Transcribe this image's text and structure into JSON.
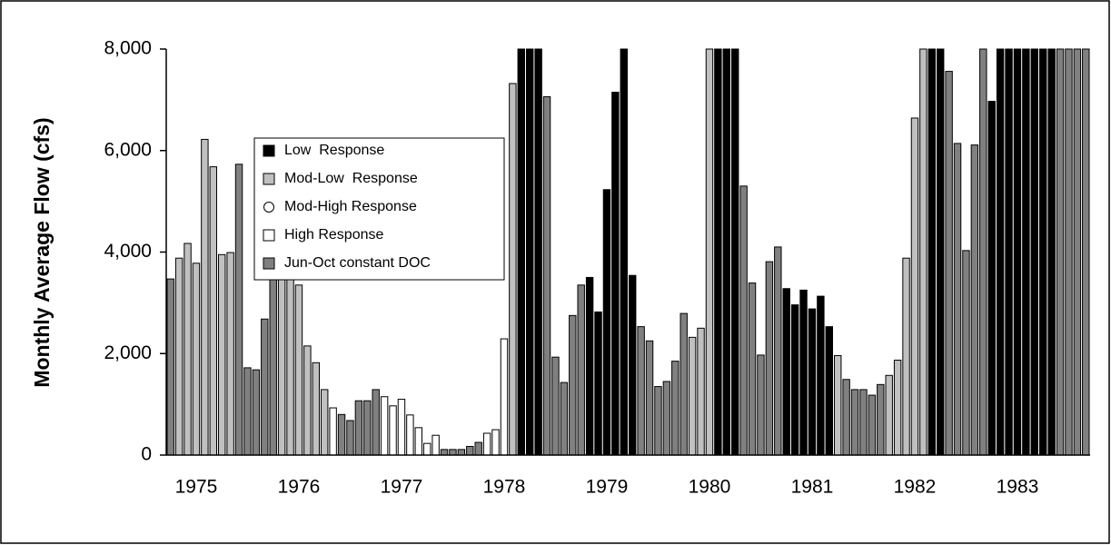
{
  "chart_data": {
    "type": "bar",
    "y_label": "Monthly Average Flow (cfs)",
    "categories": [
      null,
      null,
      null,
      "1975",
      null,
      null,
      null,
      null,
      null,
      null,
      null,
      null,
      null,
      null,
      null,
      "1976",
      null,
      null,
      null,
      null,
      null,
      null,
      null,
      null,
      null,
      null,
      null,
      "1977",
      null,
      null,
      null,
      null,
      null,
      null,
      null,
      null,
      null,
      null,
      null,
      "1978",
      null,
      null,
      null,
      null,
      null,
      null,
      null,
      null,
      null,
      null,
      null,
      "1979",
      null,
      null,
      null,
      null,
      null,
      null,
      null,
      null,
      null,
      null,
      null,
      "1980",
      null,
      null,
      null,
      null,
      null,
      null,
      null,
      null,
      null,
      null,
      null,
      "1981",
      null,
      null,
      null,
      null,
      null,
      null,
      null,
      null,
      null,
      null,
      null,
      "1982",
      null,
      null,
      null,
      null,
      null,
      null,
      null,
      null,
      null,
      null,
      null,
      "1983",
      null,
      null,
      null,
      null,
      null,
      null,
      null,
      null
    ],
    "ylim": [
      0,
      8000
    ],
    "yticks": [
      0,
      {
        "value": 2000,
        "label": "2,000"
      },
      {
        "value": 4000,
        "label": "4,000"
      },
      {
        "value": 6000,
        "label": "6,000"
      },
      {
        "value": 8000,
        "label": "8,000"
      }
    ],
    "series": [
      {
        "name": "Low  Response",
        "color": "#000000",
        "marker": "square",
        "values": [
          null,
          null,
          null,
          null,
          null,
          null,
          null,
          null,
          null,
          null,
          null,
          null,
          null,
          null,
          null,
          null,
          null,
          null,
          null,
          null,
          null,
          null,
          null,
          null,
          null,
          null,
          null,
          null,
          null,
          null,
          null,
          null,
          null,
          null,
          null,
          null,
          null,
          null,
          null,
          null,
          null,
          8000,
          8000,
          8000,
          null,
          null,
          null,
          null,
          null,
          3500,
          2820,
          5230,
          7150,
          8000,
          3540,
          null,
          null,
          null,
          null,
          null,
          null,
          null,
          null,
          null,
          8000,
          8000,
          8000,
          null,
          null,
          null,
          null,
          null,
          3280,
          2960,
          3250,
          2880,
          3130,
          2530,
          null,
          null,
          null,
          null,
          null,
          null,
          null,
          null,
          null,
          null,
          null,
          8000,
          8000,
          null,
          null,
          null,
          null,
          null,
          6970,
          8000,
          8000,
          8000,
          8000,
          8000,
          8000,
          8000,
          null,
          null,
          null,
          null
        ]
      },
      {
        "name": "Mod-Low  Response",
        "color": "#c0c0c0",
        "marker": "square",
        "values": [
          null,
          3880,
          4170,
          3780,
          6220,
          5680,
          3950,
          3990,
          null,
          null,
          null,
          null,
          null,
          3950,
          3700,
          3350,
          2150,
          1820,
          1290,
          null,
          null,
          null,
          null,
          null,
          null,
          null,
          null,
          null,
          null,
          null,
          null,
          null,
          null,
          null,
          null,
          null,
          null,
          null,
          null,
          null,
          7320,
          null,
          null,
          null,
          null,
          null,
          null,
          null,
          null,
          null,
          null,
          null,
          null,
          null,
          null,
          null,
          null,
          null,
          null,
          null,
          null,
          2320,
          2500,
          8000,
          null,
          null,
          null,
          null,
          null,
          null,
          null,
          null,
          null,
          null,
          null,
          null,
          null,
          null,
          1960,
          null,
          null,
          null,
          null,
          null,
          1570,
          1870,
          3880,
          6640,
          8000,
          null,
          null,
          null,
          null,
          null,
          null,
          null,
          null,
          null,
          null,
          null,
          null,
          null,
          null,
          null,
          null,
          null,
          null,
          null
        ]
      },
      {
        "name": "Mod-High Response",
        "color": "#ffffff",
        "marker": "circle",
        "values": [
          null,
          null,
          null,
          null,
          null,
          null,
          null,
          null,
          null,
          null,
          null,
          null,
          null,
          null,
          null,
          null,
          null,
          null,
          null,
          null,
          null,
          null,
          null,
          null,
          null,
          1150,
          970,
          1100,
          790,
          540,
          230,
          390,
          null,
          null,
          null,
          null,
          null,
          null,
          null,
          null,
          null,
          null,
          null,
          null,
          null,
          null,
          null,
          null,
          null,
          null,
          null,
          null,
          null,
          null,
          null,
          null,
          null,
          null,
          null,
          null,
          null,
          null,
          null,
          null,
          null,
          null,
          null,
          null,
          null,
          null,
          null,
          null,
          null,
          null,
          null,
          null,
          null,
          null,
          null,
          null,
          null,
          null,
          null,
          null,
          null,
          null,
          null,
          null,
          null,
          null,
          null,
          null,
          null,
          null,
          null,
          null,
          null,
          null,
          null,
          null,
          null,
          null,
          null,
          null,
          null,
          null,
          null,
          null
        ]
      },
      {
        "name": "High Response",
        "color": "#ffffff",
        "marker": "square",
        "values": [
          null,
          null,
          null,
          null,
          null,
          null,
          null,
          null,
          null,
          null,
          null,
          null,
          null,
          null,
          null,
          null,
          null,
          null,
          null,
          930,
          null,
          null,
          null,
          null,
          null,
          null,
          null,
          null,
          null,
          null,
          null,
          null,
          null,
          null,
          null,
          null,
          null,
          430,
          500,
          2290,
          null,
          null,
          null,
          null,
          null,
          null,
          null,
          null,
          null,
          null,
          null,
          null,
          null,
          null,
          null,
          null,
          null,
          null,
          null,
          null,
          null,
          null,
          null,
          null,
          null,
          null,
          null,
          null,
          null,
          null,
          null,
          null,
          null,
          null,
          null,
          null,
          null,
          null,
          null,
          null,
          null,
          null,
          null,
          null,
          null,
          null,
          null,
          null,
          null,
          null,
          null,
          null,
          null,
          null,
          null,
          null,
          null,
          null,
          null,
          null,
          null,
          null,
          null,
          null,
          null,
          null,
          null,
          null
        ]
      },
      {
        "name": "Jun-Oct constant DOC",
        "color": "#808080",
        "marker": "square",
        "values": [
          3470,
          null,
          null,
          null,
          null,
          null,
          null,
          null,
          5730,
          1720,
          1680,
          2680,
          4550,
          null,
          null,
          null,
          null,
          null,
          null,
          null,
          800,
          680,
          1070,
          1070,
          1290,
          null,
          null,
          null,
          null,
          null,
          null,
          null,
          110,
          110,
          110,
          170,
          250,
          null,
          null,
          null,
          null,
          null,
          null,
          null,
          7060,
          1930,
          1430,
          2750,
          3350,
          null,
          null,
          null,
          null,
          null,
          null,
          2530,
          2250,
          1350,
          1450,
          1850,
          2790,
          null,
          null,
          null,
          null,
          null,
          null,
          5300,
          3390,
          1970,
          3810,
          4100,
          null,
          null,
          null,
          null,
          null,
          null,
          null,
          1490,
          1290,
          1290,
          1180,
          1390,
          null,
          null,
          null,
          null,
          null,
          null,
          null,
          7560,
          6140,
          4030,
          6110,
          8000,
          null,
          null,
          null,
          null,
          null,
          null,
          null,
          null,
          8000,
          8000,
          8000,
          8000
        ]
      }
    ]
  }
}
